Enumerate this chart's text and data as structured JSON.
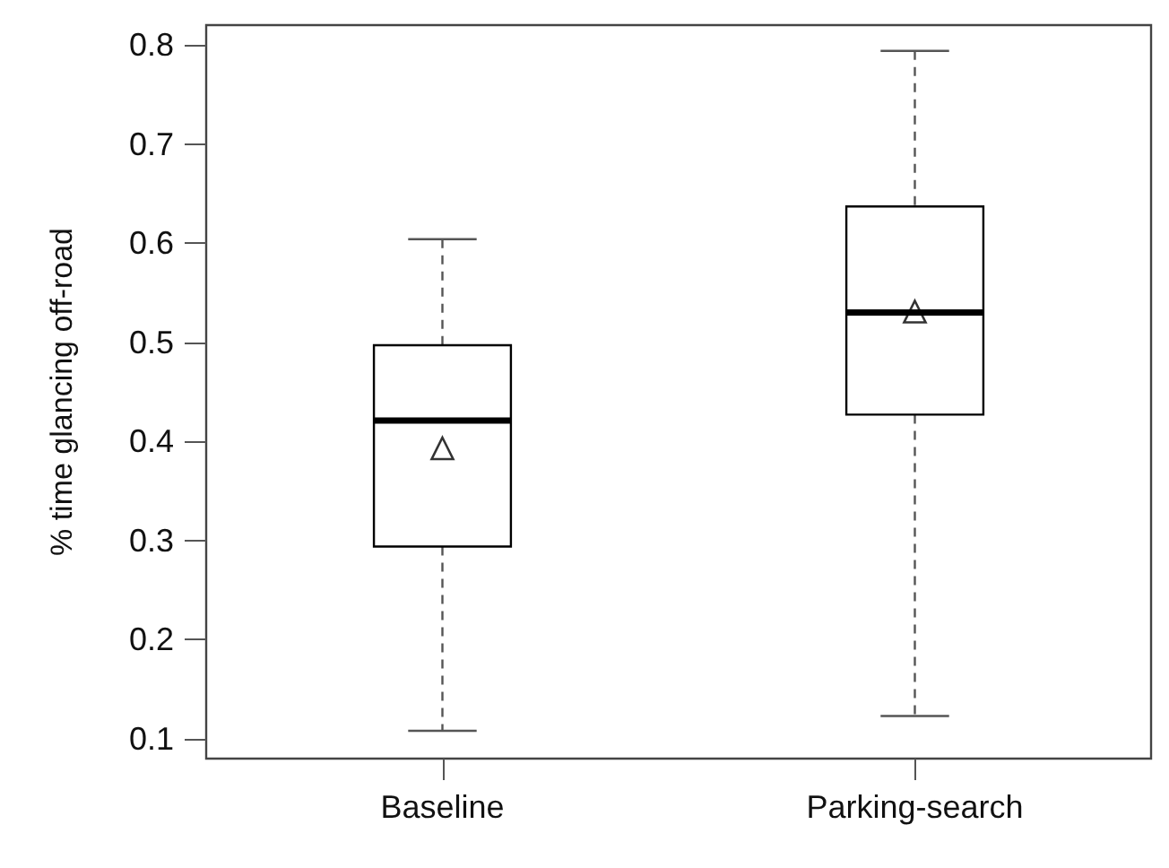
{
  "chart_data": {
    "type": "box",
    "ylabel": "% time glancing off-road",
    "categories": [
      "Baseline",
      "Parking-search"
    ],
    "series": [
      {
        "color": "#000000",
        "boxes": [
          {
            "low": 0.108,
            "q1": 0.294,
            "median": 0.421,
            "q3": 0.497,
            "high": 0.604,
            "mean": 0.393
          },
          {
            "low": 0.123,
            "q1": 0.427,
            "median": 0.53,
            "q3": 0.637,
            "high": 0.794,
            "mean": 0.531
          }
        ]
      }
    ],
    "ylim": [
      0.08,
      0.82
    ],
    "yticks": [
      0.1,
      0.2,
      0.3,
      0.4,
      0.5,
      0.6,
      0.7,
      0.8
    ],
    "grid": false,
    "marker": "triangle"
  }
}
